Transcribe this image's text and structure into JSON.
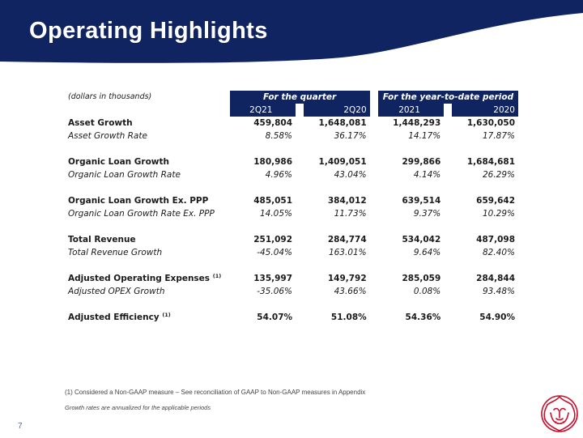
{
  "header": {
    "title": "Operating Highlights"
  },
  "table": {
    "units_label": "(dollars in thousands)",
    "group_quarter": "For the quarter",
    "group_ytd": "For the year-to-date period",
    "columns": [
      "2Q21",
      "2Q20",
      "2021",
      "2020"
    ],
    "rows": [
      {
        "label": "Asset Growth",
        "values": [
          "459,804",
          "1,648,081",
          "1,448,293",
          "1,630,050"
        ]
      },
      {
        "label": "Asset Growth Rate",
        "values": [
          "8.58%",
          "36.17%",
          "14.17%",
          "17.87%"
        ]
      },
      {
        "label": "Organic Loan Growth",
        "values": [
          "180,986",
          "1,409,051",
          "299,866",
          "1,684,681"
        ]
      },
      {
        "label": "Organic Loan Growth Rate",
        "values": [
          "4.96%",
          "43.04%",
          "4.14%",
          "26.29%"
        ]
      },
      {
        "label": "Organic Loan Growth Ex. PPP",
        "values": [
          "485,051",
          "384,012",
          "639,514",
          "659,642"
        ]
      },
      {
        "label": "Organic Loan Growth Rate Ex. PPP",
        "values": [
          "14.05%",
          "11.73%",
          "9.37%",
          "10.29%"
        ]
      },
      {
        "label": "Total Revenue",
        "values": [
          "251,092",
          "284,774",
          "534,042",
          "487,098"
        ]
      },
      {
        "label": "Total Revenue Growth",
        "values": [
          "-45.04%",
          "163.01%",
          "9.64%",
          "82.40%"
        ]
      },
      {
        "label": "Adjusted Operating Expenses",
        "sup": "(1)",
        "values": [
          "135,997",
          "149,792",
          "285,059",
          "284,844"
        ]
      },
      {
        "label": "Adjusted OPEX Growth",
        "values": [
          "-35.06%",
          "43.66%",
          "0.08%",
          "93.48%"
        ]
      },
      {
        "label": "Adjusted Efficiency",
        "sup": "(1)",
        "values": [
          "54.07%",
          "51.08%",
          "54.36%",
          "54.90%"
        ]
      }
    ]
  },
  "footnotes": {
    "note1": "(1)    Considered a Non-GAAP measure – See reconciliation of GAAP to Non-GAAP measures in Appendix",
    "note2": "Growth rates are annualized for the applicable periods"
  },
  "page_number": "7",
  "colors": {
    "brand_navy": "#0f2460",
    "logo_red": "#c8102e"
  },
  "logo_icon": "lion-head-icon"
}
